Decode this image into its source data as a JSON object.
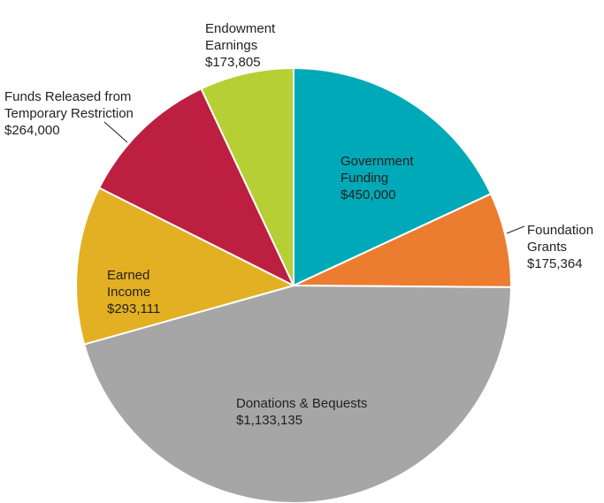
{
  "chart_data": {
    "type": "pie",
    "title": "",
    "slices": [
      {
        "label_lines": [
          "Government",
          "Funding"
        ],
        "value": 450000,
        "value_text": "$450,000",
        "color": "#00a9b7",
        "label_inside": true
      },
      {
        "label_lines": [
          "Foundation",
          "Grants"
        ],
        "value": 175364,
        "value_text": "$175,364",
        "color": "#ec7c30",
        "label_inside": false
      },
      {
        "label_lines": [
          "Donations & Bequests"
        ],
        "value": 1133135,
        "value_text": "$1,133,135",
        "color": "#a6a6a6",
        "label_inside": true
      },
      {
        "label_lines": [
          "Earned",
          "Income"
        ],
        "value": 293111,
        "value_text": "$293,111",
        "color": "#e2b022",
        "label_inside": true
      },
      {
        "label_lines": [
          "Funds Released from",
          "Temporary Restriction"
        ],
        "value": 264000,
        "value_text": "$264,000",
        "color": "#bc1f40",
        "label_inside": false
      },
      {
        "label_lines": [
          "Endowment",
          "Earnings"
        ],
        "value": 173805,
        "value_text": "$173,805",
        "color": "#b5cf35",
        "label_inside": false
      }
    ]
  }
}
